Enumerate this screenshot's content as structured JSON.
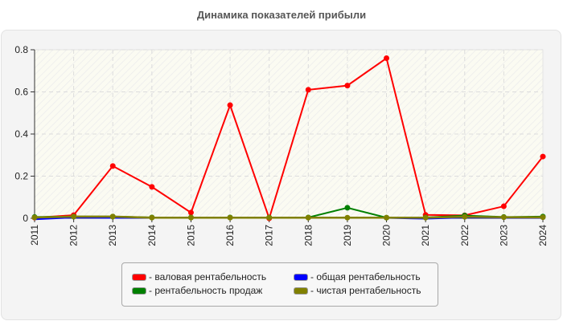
{
  "title": "Динамика показателей прибыли",
  "chart_data": {
    "type": "line",
    "title": "Динамика показателей прибыли",
    "xlabel": "",
    "ylabel": "",
    "ylim": [
      0,
      0.8
    ],
    "yticks": [
      "0",
      "0.2",
      "0.4",
      "0.6",
      "0.8"
    ],
    "grid": true,
    "legend_position": "bottom",
    "categories": [
      "2011",
      "2012",
      "2013",
      "2014",
      "2015",
      "2016",
      "2017",
      "2018",
      "2019",
      "2020",
      "2021",
      "2022",
      "2023",
      "2024"
    ],
    "series": [
      {
        "name": "валовая рентабельность",
        "color": "#ff0000",
        "values": [
          0.003,
          0.015,
          0.248,
          0.149,
          0.027,
          0.537,
          0.0,
          0.61,
          0.63,
          0.76,
          0.016,
          0.014,
          0.057,
          0.293
        ]
      },
      {
        "name": "общая рентабельность",
        "color": "#0000ff",
        "values": [
          -0.005,
          0.004,
          0.002,
          0.003,
          0.002,
          0.002,
          0.002,
          0.003,
          0.002,
          0.002,
          -0.002,
          0.004,
          0.003,
          0.003
        ]
      },
      {
        "name": "рентабельность продаж",
        "color": "#008000",
        "values": [
          0.006,
          0.008,
          0.008,
          0.004,
          0.004,
          0.004,
          0.004,
          0.004,
          0.05,
          0.003,
          0.004,
          0.013,
          0.006,
          0.008
        ]
      },
      {
        "name": "чистая рентабельность",
        "color": "#808000",
        "values": [
          0.004,
          0.008,
          0.008,
          0.003,
          0.003,
          0.003,
          0.003,
          0.003,
          0.003,
          0.003,
          0.003,
          0.007,
          0.005,
          0.005
        ]
      }
    ]
  },
  "legend": [
    {
      "label": "- валовая рентабельность",
      "color": "#ff0000"
    },
    {
      "label": "- общая рентабельность",
      "color": "#0000ff"
    },
    {
      "label": "- рентабельность продаж",
      "color": "#008000"
    },
    {
      "label": "- чистая рентабельность",
      "color": "#808000"
    }
  ]
}
